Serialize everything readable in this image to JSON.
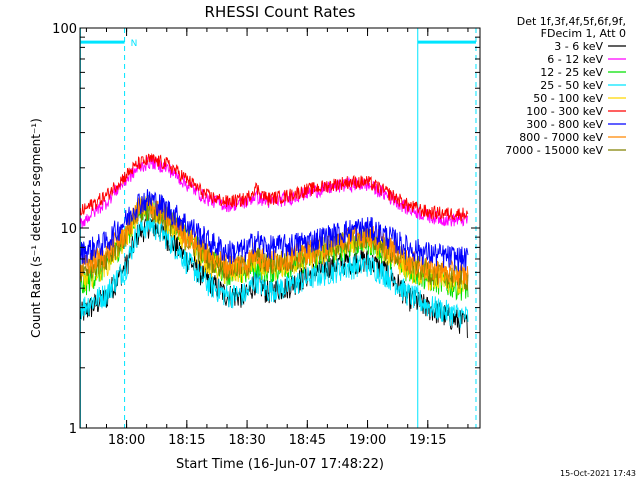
{
  "chart_data": {
    "type": "line",
    "title": "RHESSI Count Rates",
    "xlabel": "Start Time (16-Jun-07 17:48:22)",
    "ylabel": "Count Rate (s⁻¹ detector segment⁻¹)",
    "y_scale": "log",
    "ylim": [
      1,
      100
    ],
    "x_unit": "minutes of day",
    "xlim": [
      1068.4,
      1168
    ],
    "x_ticks": [
      {
        "value": 1080,
        "label": "18:00"
      },
      {
        "value": 1095,
        "label": "18:15"
      },
      {
        "value": 1110,
        "label": "18:30"
      },
      {
        "value": 1125,
        "label": "18:45"
      },
      {
        "value": 1140,
        "label": "19:00"
      },
      {
        "value": 1155,
        "label": "19:15"
      }
    ],
    "y_ticks": [
      {
        "value": 1,
        "label": "1"
      },
      {
        "value": 10,
        "label": "10"
      },
      {
        "value": 100,
        "label": "100"
      }
    ],
    "x": [
      1068.5,
      1075,
      1080,
      1083,
      1086,
      1090,
      1095,
      1100,
      1105,
      1110,
      1112,
      1115,
      1120,
      1125,
      1130,
      1135,
      1140,
      1145,
      1150,
      1155,
      1160,
      1165
    ],
    "series": [
      {
        "name": "3 - 6 keV",
        "color": "#000000",
        "values": [
          3.7,
          4.5,
          6.5,
          9.5,
          10.5,
          9.0,
          7.0,
          5.5,
          4.6,
          4.6,
          5.4,
          4.8,
          5.1,
          5.8,
          6.4,
          6.8,
          6.9,
          6.0,
          4.5,
          4.0,
          3.6,
          3.3
        ]
      },
      {
        "name": "6 - 12 keV",
        "color": "#ff00ff",
        "values": [
          10.5,
          13.5,
          17.5,
          20.0,
          21.5,
          20.0,
          16.5,
          14.0,
          13.0,
          13.5,
          14.5,
          13.5,
          14.0,
          15.0,
          15.8,
          16.5,
          16.5,
          14.5,
          12.5,
          11.5,
          11.0,
          11.0
        ]
      },
      {
        "name": "12 - 25 keV",
        "color": "#00e000",
        "values": [
          5.0,
          6.5,
          9.0,
          12.0,
          13.0,
          11.5,
          9.0,
          7.2,
          6.0,
          6.0,
          6.7,
          6.1,
          6.5,
          7.0,
          7.6,
          8.1,
          8.6,
          7.4,
          6.2,
          5.6,
          5.2,
          5.0
        ]
      },
      {
        "name": "25 - 50 keV",
        "color": "#00e5ff",
        "values": [
          4.0,
          4.7,
          6.5,
          9.8,
          10.5,
          9.0,
          6.8,
          5.3,
          4.6,
          4.7,
          5.6,
          4.9,
          5.1,
          5.6,
          6.0,
          6.4,
          6.6,
          5.8,
          4.7,
          4.1,
          3.8,
          3.6
        ]
      },
      {
        "name": "50 - 100 keV",
        "color": "#ffd800",
        "values": [
          5.3,
          6.6,
          9.0,
          12.5,
          13.0,
          11.0,
          8.5,
          6.8,
          5.9,
          6.1,
          6.9,
          6.1,
          6.6,
          7.1,
          7.7,
          8.4,
          8.9,
          7.5,
          6.3,
          5.7,
          5.4,
          5.2
        ]
      },
      {
        "name": "100 - 300 keV",
        "color": "#ff0000",
        "values": [
          12.0,
          14.5,
          18.5,
          21.0,
          22.0,
          21.0,
          17.5,
          14.5,
          13.5,
          14.0,
          16.0,
          14.0,
          14.5,
          15.5,
          16.3,
          17.0,
          17.0,
          15.0,
          13.0,
          12.0,
          11.8,
          11.8
        ]
      },
      {
        "name": "300 - 800 keV",
        "color": "#0000ff",
        "values": [
          7.5,
          8.5,
          11.0,
          13.5,
          14.0,
          12.5,
          10.5,
          8.7,
          7.6,
          7.8,
          8.8,
          8.0,
          8.2,
          8.6,
          9.1,
          9.7,
          10.1,
          9.1,
          8.0,
          7.5,
          7.2,
          7.0
        ]
      },
      {
        "name": "800 - 7000 keV",
        "color": "#ff8800",
        "values": [
          6.2,
          7.5,
          9.5,
          12.5,
          13.0,
          11.5,
          9.2,
          7.5,
          6.5,
          6.7,
          7.6,
          6.8,
          7.1,
          7.6,
          8.2,
          8.9,
          9.4,
          8.1,
          6.9,
          6.3,
          6.0,
          5.8
        ]
      },
      {
        "name": "7000 - 15000 keV",
        "color": "#808000",
        "values": [
          6.0,
          7.2,
          9.2,
          12.0,
          12.5,
          11.0,
          8.8,
          7.2,
          6.3,
          6.5,
          7.3,
          6.6,
          6.9,
          7.4,
          8.0,
          8.6,
          9.1,
          7.8,
          6.7,
          6.1,
          5.8,
          5.6
        ]
      }
    ],
    "legend": {
      "placement": "right",
      "header": [
        "Det 1f,3f,4f,5f,6f,9f,",
        "FDecim 1, Att 0"
      ]
    },
    "annotations": {
      "night_intervals": [
        [
          1068.5,
          1079.5
        ],
        [
          1152.5,
          1167.0
        ]
      ],
      "night_color": "#00e5ff",
      "boundary_solid": [
        1068.5,
        1152.5
      ],
      "boundary_dashed": [
        1079.5,
        1167.0
      ],
      "marker_label": "N",
      "marker_x": 1080.5,
      "bar_y": 85
    },
    "footer_date": "15-Oct-2021 17:43"
  }
}
